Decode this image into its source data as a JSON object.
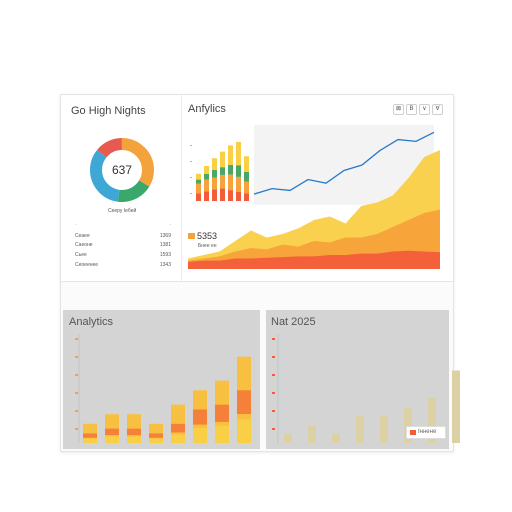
{
  "left_panel": {
    "title": "Go High Nights",
    "donut_value": "637",
    "donut_caption": "Сееру Іебей",
    "donut_colors": [
      "#f4a23c",
      "#3aa86a",
      "#3fa7d6",
      "#e85a4f"
    ],
    "rows": [
      {
        "label": "Сеаее",
        "value": "1369"
      },
      {
        "label": "Саеоне",
        "value": "1381"
      },
      {
        "label": "Сьее",
        "value": "1593"
      },
      {
        "label": "Сеоеенее",
        "value": "1343"
      }
    ]
  },
  "right_panel": {
    "title": "Anfylics",
    "toolbar": [
      "⊠",
      "B",
      "∨",
      "∀"
    ],
    "stat_value": "5353",
    "stat_caption": "Бнее ен"
  },
  "bottom_left": {
    "title": "Analytics"
  },
  "bottom_right": {
    "title": "Nat 2025",
    "legend": "Іннене"
  },
  "colors": {
    "red": "#f25c3a",
    "orange": "#f7a23a",
    "yellow": "#f9cf45",
    "green": "#4aa864",
    "blue": "#2979c9"
  },
  "chart_data": [
    {
      "type": "bar",
      "title": "",
      "categories": [
        "",
        "",
        "",
        "",
        "",
        "",
        ""
      ],
      "series": [
        {
          "values": [
            20,
            25,
            30,
            32,
            28,
            24,
            20
          ]
        },
        {
          "values": [
            25,
            30,
            30,
            35,
            40,
            38,
            30
          ]
        },
        {
          "values": [
            10,
            15,
            20,
            20,
            25,
            30,
            25
          ]
        },
        {
          "values": [
            15,
            20,
            30,
            40,
            50,
            60,
            40
          ]
        }
      ],
      "ylim": [
        0,
        180
      ]
    },
    {
      "type": "line",
      "title": "",
      "y": [
        30,
        45,
        40,
        70,
        60,
        95,
        110,
        150,
        180,
        175,
        200
      ],
      "ylim": [
        0,
        220
      ]
    },
    {
      "type": "area",
      "title": "",
      "x": [
        0,
        1,
        2,
        3,
        4,
        5,
        6,
        7,
        8,
        9,
        10,
        11,
        12,
        13,
        14,
        15,
        16
      ],
      "series": [
        {
          "values": [
            10,
            12,
            12,
            15,
            15,
            16,
            17,
            18,
            18,
            20,
            20,
            22,
            22,
            25,
            26,
            25,
            24
          ]
        },
        {
          "values": [
            12,
            15,
            18,
            25,
            30,
            28,
            35,
            32,
            40,
            38,
            45,
            45,
            50,
            60,
            70,
            80,
            85
          ]
        },
        {
          "values": [
            15,
            20,
            25,
            40,
            55,
            45,
            50,
            58,
            70,
            75,
            65,
            90,
            95,
            105,
            130,
            160,
            170
          ]
        }
      ],
      "ylim": [
        0,
        180
      ]
    },
    {
      "type": "bar",
      "title": "",
      "categories": [
        "",
        "",
        "",
        "",
        "",
        "",
        "",
        ""
      ],
      "series": [
        {
          "values": [
            10,
            15,
            15,
            10,
            20,
            35,
            40,
            55
          ]
        },
        {
          "values": [
            20,
            30,
            30,
            20,
            40,
            55,
            65,
            90
          ]
        }
      ],
      "ylim": [
        0,
        120
      ]
    },
    {
      "type": "bar",
      "title": "",
      "categories": [
        "",
        "",
        "",
        "",
        "",
        "",
        "",
        ""
      ],
      "series": [
        {
          "values": [
            8,
            14,
            8,
            22,
            22,
            28,
            36,
            58
          ]
        }
      ],
      "ylim": [
        0,
        80
      ]
    }
  ]
}
